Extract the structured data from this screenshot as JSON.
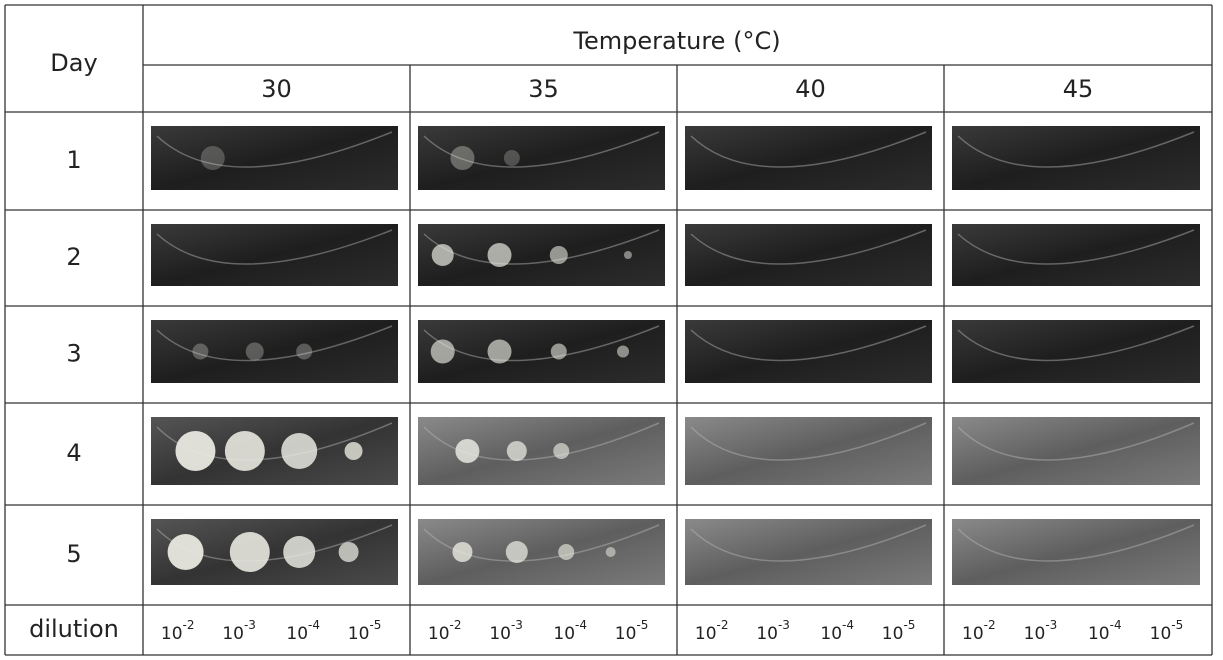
{
  "header": {
    "day": "Day",
    "temperature": "Temperature (°C)",
    "temperatures": [
      "30",
      "35",
      "40",
      "45"
    ]
  },
  "rows": [
    {
      "day": "1"
    },
    {
      "day": "2"
    },
    {
      "day": "3"
    },
    {
      "day": "4"
    },
    {
      "day": "5"
    }
  ],
  "dilution": {
    "label": "dilution",
    "columns": [
      [
        {
          "base": "10",
          "exp": "-2"
        },
        {
          "base": "10",
          "exp": "-3"
        },
        {
          "base": "10",
          "exp": "-4"
        },
        {
          "base": "10",
          "exp": "-5"
        }
      ],
      [
        {
          "base": "10",
          "exp": "-2"
        },
        {
          "base": "10",
          "exp": "-3"
        },
        {
          "base": "10",
          "exp": "-4"
        },
        {
          "base": "10",
          "exp": "-5"
        }
      ],
      [
        {
          "base": "10",
          "exp": "-2"
        },
        {
          "base": "10",
          "exp": "-3"
        },
        {
          "base": "10",
          "exp": "-4"
        },
        {
          "base": "10",
          "exp": "-5"
        }
      ],
      [
        {
          "base": "10",
          "exp": "-2"
        },
        {
          "base": "10",
          "exp": "-3"
        },
        {
          "base": "10",
          "exp": "-4"
        },
        {
          "base": "10",
          "exp": "-5"
        }
      ]
    ]
  }
}
